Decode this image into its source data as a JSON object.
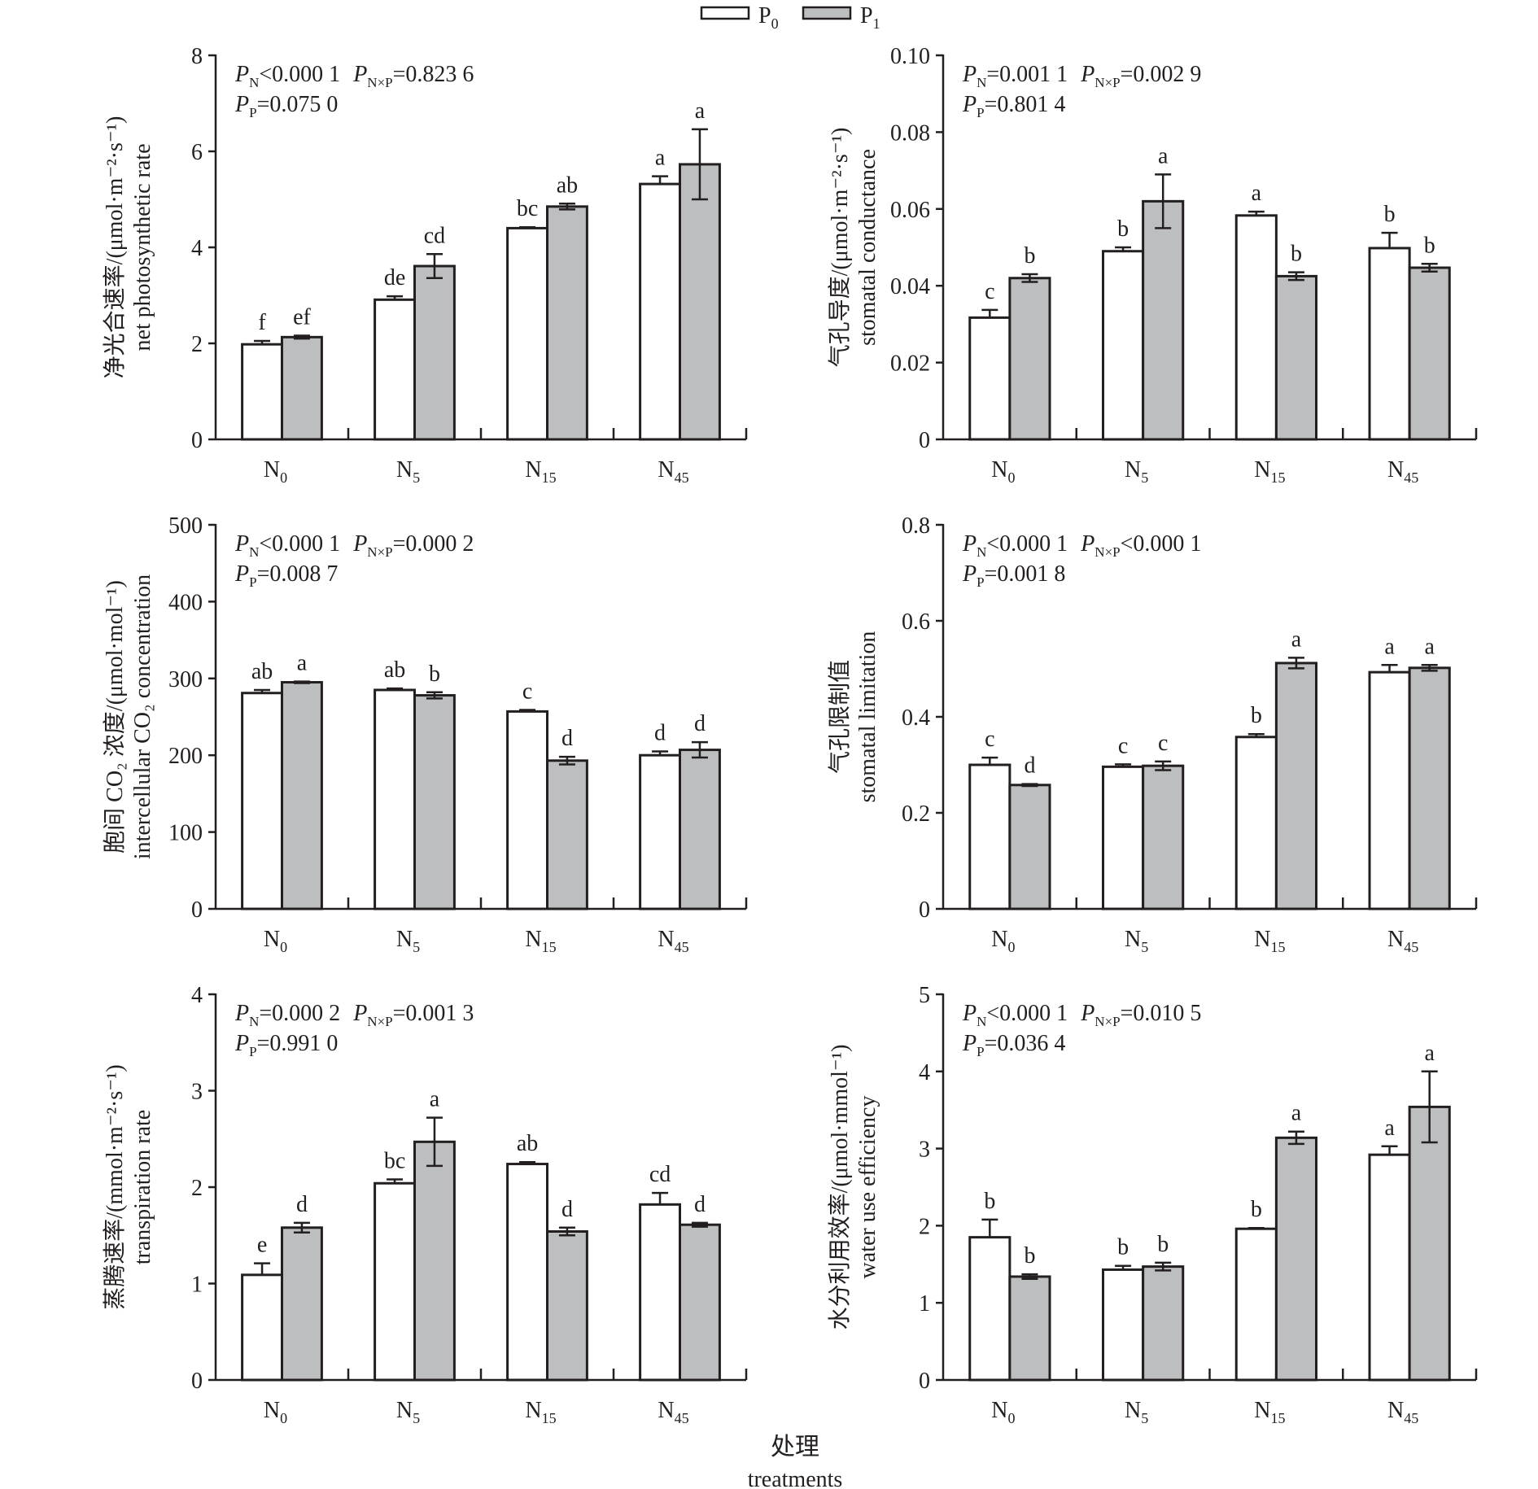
{
  "legend": [
    {
      "label": "P",
      "sub": "0",
      "fill": "#ffffff"
    },
    {
      "label": "P",
      "sub": "1",
      "fill": "#bcbec0"
    }
  ],
  "xlabel_cn": "处理",
  "xlabel_en": "treatments",
  "chart_data": [
    {
      "type": "bar",
      "ylabel_cn": "净光合速率/(μmol·m⁻²·s⁻¹)",
      "ylabel_en": "net photosynthetic rate",
      "ylim": [
        0,
        8
      ],
      "yticks": [
        "0",
        "2",
        "4",
        "6",
        "8"
      ],
      "ytick_values": [
        0,
        2,
        4,
        6,
        8
      ],
      "categories": [
        {
          "base": "N",
          "sub": "0"
        },
        {
          "base": "N",
          "sub": "5"
        },
        {
          "base": "N",
          "sub": "15"
        },
        {
          "base": "N",
          "sub": "45"
        }
      ],
      "stats": [
        [
          {
            "p": "N",
            "op": "<",
            "v": "0.000 1"
          },
          {
            "p": "N×P",
            "op": "=",
            "v": "0.823 6"
          }
        ],
        [
          {
            "p": "P",
            "op": "=",
            "v": "0.075 0"
          }
        ]
      ],
      "series": [
        {
          "name": "P0",
          "values": [
            1.98,
            2.91,
            4.4,
            5.32
          ],
          "errors": [
            0.07,
            0.07,
            0.02,
            0.16
          ],
          "letters": [
            "f",
            "de",
            "bc",
            "a"
          ]
        },
        {
          "name": "P1",
          "values": [
            2.13,
            3.61,
            4.85,
            5.73
          ],
          "errors": [
            0.03,
            0.25,
            0.06,
            0.73
          ],
          "letters": [
            "ef",
            "cd",
            "ab",
            "a"
          ]
        }
      ]
    },
    {
      "type": "bar",
      "ylabel_cn": "气孔导度/(μmol·m⁻²·s⁻¹)",
      "ylabel_en": "stomatal conductance",
      "ylim": [
        0,
        0.1
      ],
      "yticks": [
        "0",
        "0.02",
        "0.04",
        "0.06",
        "0.08",
        "0.10"
      ],
      "ytick_values": [
        0,
        0.02,
        0.04,
        0.06,
        0.08,
        0.1
      ],
      "categories": [
        {
          "base": "N",
          "sub": "0"
        },
        {
          "base": "N",
          "sub": "5"
        },
        {
          "base": "N",
          "sub": "15"
        },
        {
          "base": "N",
          "sub": "45"
        }
      ],
      "stats": [
        [
          {
            "p": "N",
            "op": "=",
            "v": "0.001 1"
          },
          {
            "p": "N×P",
            "op": "=",
            "v": "0.002 9"
          }
        ],
        [
          {
            "p": "P",
            "op": "=",
            "v": "0.801 4"
          }
        ]
      ],
      "series": [
        {
          "name": "P0",
          "values": [
            0.0317,
            0.049,
            0.0583,
            0.0498
          ],
          "errors": [
            0.002,
            0.001,
            0.001,
            0.004
          ],
          "letters": [
            "c",
            "b",
            "a",
            "b"
          ]
        },
        {
          "name": "P1",
          "values": [
            0.042,
            0.062,
            0.0425,
            0.0447
          ],
          "errors": [
            0.001,
            0.007,
            0.001,
            0.001
          ],
          "letters": [
            "b",
            "a",
            "b",
            "b"
          ]
        }
      ]
    },
    {
      "type": "bar",
      "ylabel_cn": "胞间 CO₂ 浓度/(μmol·mol⁻¹)",
      "ylabel_en": "intercellular CO₂ concentration",
      "ylim": [
        0,
        500
      ],
      "yticks": [
        "0",
        "100",
        "200",
        "300",
        "400",
        "500"
      ],
      "ytick_values": [
        0,
        100,
        200,
        300,
        400,
        500
      ],
      "categories": [
        {
          "base": "N",
          "sub": "0"
        },
        {
          "base": "N",
          "sub": "5"
        },
        {
          "base": "N",
          "sub": "15"
        },
        {
          "base": "N",
          "sub": "45"
        }
      ],
      "stats": [
        [
          {
            "p": "N",
            "op": "<",
            "v": "0.000 1"
          },
          {
            "p": "N×P",
            "op": "=",
            "v": "0.000 2"
          }
        ],
        [
          {
            "p": "P",
            "op": "=",
            "v": "0.008 7"
          }
        ]
      ],
      "series": [
        {
          "name": "P0",
          "values": [
            281,
            285,
            257,
            200
          ],
          "errors": [
            4,
            2,
            2,
            5
          ],
          "letters": [
            "ab",
            "ab",
            "c",
            "d"
          ]
        },
        {
          "name": "P1",
          "values": [
            295,
            278,
            193,
            207
          ],
          "errors": [
            1,
            4,
            5,
            10
          ],
          "letters": [
            "a",
            "b",
            "d",
            "d"
          ]
        }
      ]
    },
    {
      "type": "bar",
      "ylabel_cn": "气孔限制值",
      "ylabel_en": "stomatal limitation",
      "ylim": [
        0,
        0.8
      ],
      "yticks": [
        "0",
        "0.2",
        "0.4",
        "0.6",
        "0.8"
      ],
      "ytick_values": [
        0,
        0.2,
        0.4,
        0.6,
        0.8
      ],
      "categories": [
        {
          "base": "N",
          "sub": "0"
        },
        {
          "base": "N",
          "sub": "5"
        },
        {
          "base": "N",
          "sub": "15"
        },
        {
          "base": "N",
          "sub": "45"
        }
      ],
      "stats": [
        [
          {
            "p": "N",
            "op": "<",
            "v": "0.000 1"
          },
          {
            "p": "N×P",
            "op": "<",
            "v": "0.000 1"
          }
        ],
        [
          {
            "p": "P",
            "op": "=",
            "v": "0.001 8"
          }
        ]
      ],
      "series": [
        {
          "name": "P0",
          "values": [
            0.3,
            0.296,
            0.358,
            0.493
          ],
          "errors": [
            0.015,
            0.005,
            0.006,
            0.015
          ],
          "letters": [
            "c",
            "c",
            "b",
            "a"
          ]
        },
        {
          "name": "P1",
          "values": [
            0.258,
            0.298,
            0.512,
            0.502
          ],
          "errors": [
            0.002,
            0.009,
            0.011,
            0.006
          ],
          "letters": [
            "d",
            "c",
            "a",
            "a"
          ]
        }
      ]
    },
    {
      "type": "bar",
      "ylabel_cn": "蒸腾速率/(mmol·m⁻²·s⁻¹)",
      "ylabel_en": "transpiration rate",
      "ylim": [
        0,
        4
      ],
      "yticks": [
        "0",
        "1",
        "2",
        "3",
        "4"
      ],
      "ytick_values": [
        0,
        1,
        2,
        3,
        4
      ],
      "categories": [
        {
          "base": "N",
          "sub": "0"
        },
        {
          "base": "N",
          "sub": "5"
        },
        {
          "base": "N",
          "sub": "15"
        },
        {
          "base": "N",
          "sub": "45"
        }
      ],
      "stats": [
        [
          {
            "p": "N",
            "op": "=",
            "v": "0.000 2"
          },
          {
            "p": "N×P",
            "op": "=",
            "v": "0.001 3"
          }
        ],
        [
          {
            "p": "P",
            "op": "=",
            "v": "0.991 0"
          }
        ]
      ],
      "series": [
        {
          "name": "P0",
          "values": [
            1.09,
            2.04,
            2.24,
            1.82
          ],
          "errors": [
            0.12,
            0.04,
            0.02,
            0.12
          ],
          "letters": [
            "e",
            "bc",
            "ab",
            "cd"
          ]
        },
        {
          "name": "P1",
          "values": [
            1.58,
            2.47,
            1.54,
            1.61
          ],
          "errors": [
            0.05,
            0.25,
            0.04,
            0.02
          ],
          "letters": [
            "d",
            "a",
            "d",
            "d"
          ]
        }
      ]
    },
    {
      "type": "bar",
      "ylabel_cn": "水分利用效率/(μmol·mmol⁻¹)",
      "ylabel_en": "water use efficiency",
      "ylim": [
        0,
        5
      ],
      "yticks": [
        "0",
        "1",
        "2",
        "3",
        "4",
        "5"
      ],
      "ytick_values": [
        0,
        1,
        2,
        3,
        4,
        5
      ],
      "categories": [
        {
          "base": "N",
          "sub": "0"
        },
        {
          "base": "N",
          "sub": "5"
        },
        {
          "base": "N",
          "sub": "15"
        },
        {
          "base": "N",
          "sub": "45"
        }
      ],
      "stats": [
        [
          {
            "p": "N",
            "op": "<",
            "v": "0.000 1"
          },
          {
            "p": "N×P",
            "op": "=",
            "v": "0.010 5"
          }
        ],
        [
          {
            "p": "P",
            "op": "=",
            "v": "0.036 4"
          }
        ]
      ],
      "series": [
        {
          "name": "P0",
          "values": [
            1.85,
            1.43,
            1.96,
            2.92
          ],
          "errors": [
            0.23,
            0.05,
            0.01,
            0.11
          ],
          "letters": [
            "b",
            "b",
            "b",
            "a"
          ]
        },
        {
          "name": "P1",
          "values": [
            1.34,
            1.47,
            3.14,
            3.54
          ],
          "errors": [
            0.03,
            0.05,
            0.08,
            0.46
          ],
          "letters": [
            "b",
            "b",
            "a",
            "a"
          ]
        }
      ]
    }
  ]
}
